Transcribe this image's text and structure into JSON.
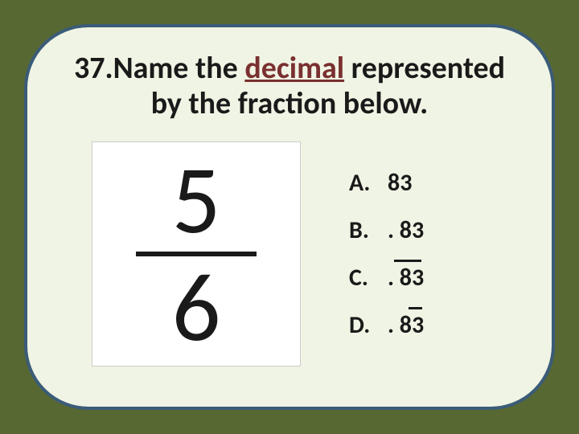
{
  "question": {
    "number": "37.",
    "prefix": "Name the ",
    "underlined_word": "decimal",
    "suffix": " represented by the fraction below."
  },
  "fraction": {
    "numerator": "5",
    "denominator": "6"
  },
  "choices": [
    {
      "letter": "A.",
      "value": "83",
      "repeat": "none"
    },
    {
      "letter": "B.",
      "value": ". 83",
      "repeat": "none"
    },
    {
      "letter": "C.",
      "value": ". 83",
      "repeat": "full"
    },
    {
      "letter": "D.",
      "value": ". 83",
      "repeat": "last"
    }
  ],
  "colors": {
    "outer_bg": "#576832",
    "card_bg": "#f0f4e4",
    "card_border": "#3b5c78",
    "text": "#1a1a1a",
    "underline_word": "#7a3030",
    "fraction_bg": "#ffffff"
  }
}
